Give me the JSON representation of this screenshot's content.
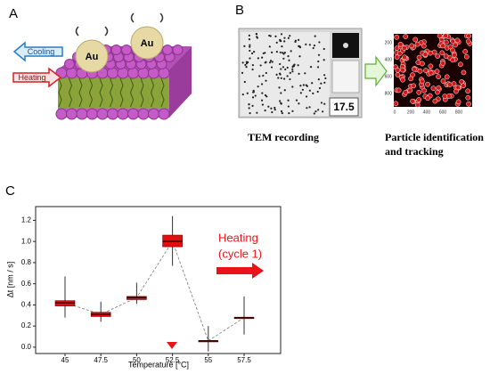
{
  "panel_a": {
    "label": "A",
    "cooling": "Cooling",
    "heating": "Heating",
    "particles": [
      "Au",
      "Au"
    ]
  },
  "panel_b": {
    "label": "B",
    "time_display": "17.5",
    "left_caption": "TEM recording",
    "right_caption": [
      "Particle identification",
      "and tracking"
    ],
    "tracking_xticks": [
      "0",
      "200",
      "400",
      "600",
      "800"
    ],
    "tracking_yticks": [
      "200",
      "400",
      "600",
      "800"
    ]
  },
  "chart_data": {
    "type": "box",
    "panel_label": "C",
    "xlabel": "Temperature [°C]",
    "ylabel": "Δt [nm / s]",
    "categories": [
      "45",
      "47.5",
      "50",
      "52.5",
      "55",
      "57.5"
    ],
    "series": [
      {
        "color": "#e01010",
        "whisker_low": [
          0.28,
          0.24,
          0.41,
          0.77,
          -0.04,
          0.12
        ],
        "q1": [
          0.39,
          0.29,
          0.45,
          0.95,
          0.05,
          0.27
        ],
        "median": [
          0.42,
          0.31,
          0.47,
          1.0,
          0.06,
          0.28
        ],
        "q3": [
          0.44,
          0.33,
          0.48,
          1.06,
          0.06,
          0.28
        ],
        "whisker_high": [
          0.67,
          0.43,
          0.61,
          1.24,
          0.2,
          0.48
        ]
      }
    ],
    "ylim": [
      -0.06,
      1.33
    ],
    "yticks": [
      {
        "value": 0,
        "label": "0.0"
      },
      {
        "value": 0.2,
        "label": "0.2"
      },
      {
        "value": 0.4,
        "label": "0.4"
      },
      {
        "value": 0.6,
        "label": "0.6"
      },
      {
        "value": 0.8,
        "label": "0.8"
      },
      {
        "value": 1.0,
        "label": "1.0"
      },
      {
        "value": 1.2,
        "label": "1.2"
      }
    ],
    "annotation": [
      "Heating",
      "(cycle 1)"
    ],
    "annotation_color": "#e8141a"
  }
}
